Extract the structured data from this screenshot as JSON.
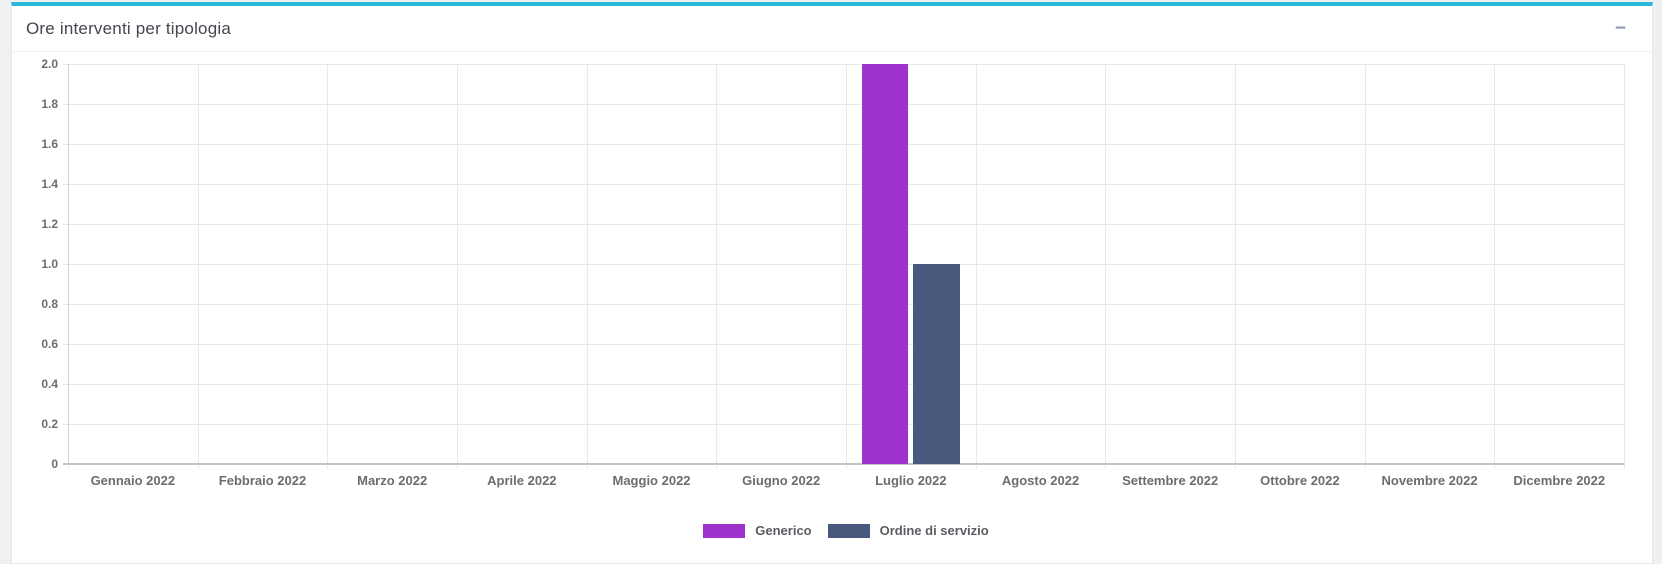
{
  "page": {
    "background_color": "#eef0f1"
  },
  "panel": {
    "title": "Ore interventi per tipologia",
    "accent_color": "#29b8dc",
    "minimize_icon": "−"
  },
  "chart_data": {
    "type": "bar",
    "title": "Ore interventi per tipologia",
    "categories": [
      "Gennaio 2022",
      "Febbraio 2022",
      "Marzo 2022",
      "Aprile 2022",
      "Maggio 2022",
      "Giugno 2022",
      "Luglio 2022",
      "Agosto 2022",
      "Settembre 2022",
      "Ottobre 2022",
      "Novembre 2022",
      "Dicembre 2022"
    ],
    "series": [
      {
        "name": "Generico",
        "color": "#9e32cd",
        "values": [
          0,
          0,
          0,
          0,
          0,
          0,
          2,
          0,
          0,
          0,
          0,
          0
        ]
      },
      {
        "name": "Ordine di servizio",
        "color": "#48597d",
        "values": [
          0,
          0,
          0,
          0,
          0,
          0,
          1,
          0,
          0,
          0,
          0,
          0
        ]
      }
    ],
    "xlabel": "",
    "ylabel": "",
    "ylim": [
      0,
      2
    ],
    "ytick_labels": [
      "0",
      "0.2",
      "0.4",
      "0.6",
      "0.8",
      "1.0",
      "1.2",
      "1.4",
      "1.6",
      "1.8",
      "2.0"
    ],
    "grid": true,
    "legend_position": "bottom"
  }
}
